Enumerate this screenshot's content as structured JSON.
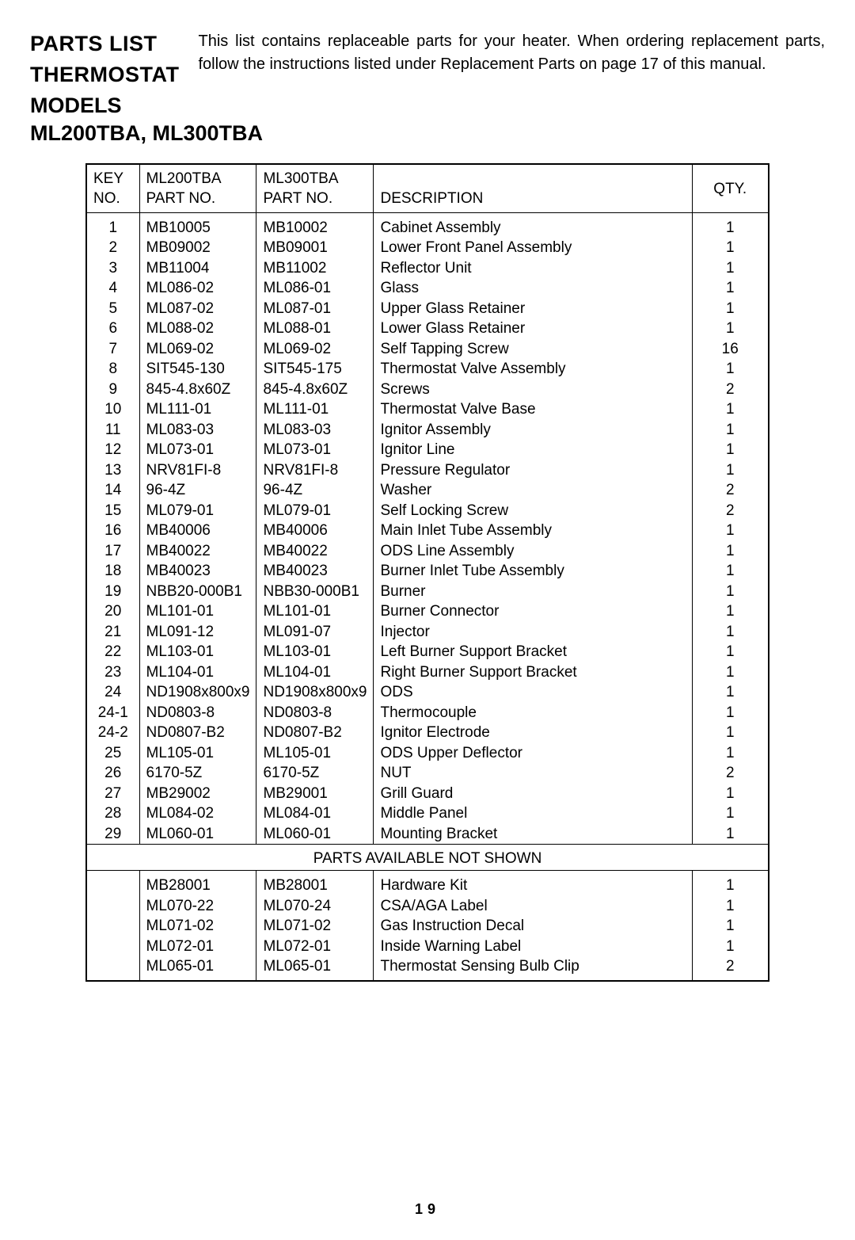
{
  "header": {
    "title_line1": "PARTS  LIST",
    "title_line2": "THERMOSTAT",
    "title_line3": "MODELS",
    "models": "ML200TBA, ML300TBA",
    "intro": "This list contains replaceable parts for your heater. When ordering replacement parts, follow  the instructions listed under Replacement Parts on page 17 of this manual."
  },
  "table": {
    "columns": {
      "key_l1": "KEY",
      "key_l2": "NO.",
      "p1_l1": "ML200TBA",
      "p1_l2": "PART NO.",
      "p2_l1": "ML300TBA",
      "p2_l2": "PART NO.",
      "desc": "DESCRIPTION",
      "qty": "QTY."
    },
    "rows": [
      {
        "key": "1",
        "p1": "MB10005",
        "p2": "MB10002",
        "desc": "Cabinet  Assembly",
        "qty": "1"
      },
      {
        "key": "2",
        "p1": "MB09002",
        "p2": "MB09001",
        "desc": "Lower Front  Panel  Assembly",
        "qty": "1"
      },
      {
        "key": "3",
        "p1": "MB11004",
        "p2": "MB11002",
        "desc": "Reflector  Unit",
        "qty": "1"
      },
      {
        "key": "4",
        "p1": "ML086-02",
        "p2": "ML086-01",
        "desc": "Glass",
        "qty": "1"
      },
      {
        "key": "5",
        "p1": "ML087-02",
        "p2": "ML087-01",
        "desc": "Upper  Glass  Retainer",
        "qty": "1"
      },
      {
        "key": "6",
        "p1": "ML088-02",
        "p2": "ML088-01",
        "desc": "Lower  Glass  Retainer",
        "qty": "1"
      },
      {
        "key": "7",
        "p1": "ML069-02",
        "p2": "ML069-02",
        "desc": "Self  Tapping  Screw",
        "qty": "16"
      },
      {
        "key": "8",
        "p1": "SIT545-130",
        "p2": "SIT545-175",
        "desc": "Thermostat   Valve  Assembly",
        "qty": "1"
      },
      {
        "key": "9",
        "p1": "845-4.8x60Z",
        "p2": "845-4.8x60Z",
        "desc": "Screws",
        "qty": "2"
      },
      {
        "key": "10",
        "p1": "ML111-01",
        "p2": "ML111-01",
        "desc": "Thermostat  Valve  Base",
        "qty": "1"
      },
      {
        "key": "11",
        "p1": "ML083-03",
        "p2": "ML083-03",
        "desc": "Ignitor   Assembly",
        "qty": "1"
      },
      {
        "key": "12",
        "p1": "ML073-01",
        "p2": "ML073-01",
        "desc": "Ignitor  Line",
        "qty": "1"
      },
      {
        "key": "13",
        "p1": "NRV81FI-8",
        "p2": "NRV81FI-8",
        "desc": "Pressure   Regulator",
        "qty": "1"
      },
      {
        "key": "14",
        "p1": "96-4Z",
        "p2": "96-4Z",
        "desc": "Washer",
        "qty": "2"
      },
      {
        "key": "15",
        "p1": "ML079-01",
        "p2": "ML079-01",
        "desc": "Self  Locking  Screw",
        "qty": "2"
      },
      {
        "key": "16",
        "p1": "MB40006",
        "p2": "MB40006",
        "desc": "Main  Inlet  Tube  Assembly",
        "qty": "1"
      },
      {
        "key": "17",
        "p1": "MB40022",
        "p2": "MB40022",
        "desc": "ODS  Line  Assembly",
        "qty": "1"
      },
      {
        "key": "18",
        "p1": "MB40023",
        "p2": "MB40023",
        "desc": "Burner  Inlet  Tube  Assembly",
        "qty": "1"
      },
      {
        "key": "19",
        "p1": "NBB20-000B1",
        "p2": "NBB30-000B1",
        "desc": "Burner",
        "qty": "1"
      },
      {
        "key": "20",
        "p1": "ML101-01",
        "p2": "ML101-01",
        "desc": "Burner  Connector",
        "qty": "1"
      },
      {
        "key": "21",
        "p1": "ML091-12",
        "p2": "ML091-07",
        "desc": "Injector",
        "qty": "1"
      },
      {
        "key": "22",
        "p1": "ML103-01",
        "p2": "ML103-01",
        "desc": "Left  Burner  Support  Bracket",
        "qty": "1"
      },
      {
        "key": "23",
        "p1": "ML104-01",
        "p2": "ML104-01",
        "desc": "Right  Burner  Support  Bracket",
        "qty": "1"
      },
      {
        "key": "24",
        "p1": "ND1908x800x9",
        "p2": "ND1908x800x9",
        "desc": "ODS",
        "qty": "1"
      },
      {
        "key": "24-1",
        "p1": "ND0803-8",
        "p2": "ND0803-8",
        "desc": "Thermocouple",
        "qty": "1"
      },
      {
        "key": "24-2",
        "p1": "ND0807-B2",
        "p2": "ND0807-B2",
        "desc": "Ignitor   Electrode",
        "qty": "1"
      },
      {
        "key": "25",
        "p1": "ML105-01",
        "p2": "ML105-01",
        "desc": "ODS  Upper  Deflector",
        "qty": "1"
      },
      {
        "key": "26",
        "p1": "6170-5Z",
        "p2": "6170-5Z",
        "desc": "NUT",
        "qty": "2"
      },
      {
        "key": "27",
        "p1": "MB29002",
        "p2": "MB29001",
        "desc": "Grill  Guard",
        "qty": "1"
      },
      {
        "key": "28",
        "p1": "ML084-02",
        "p2": "ML084-01",
        "desc": "Middle  Panel",
        "qty": "1"
      },
      {
        "key": "29",
        "p1": "ML060-01",
        "p2": "ML060-01",
        "desc": "Mounting  Bracket",
        "qty": "1"
      }
    ],
    "section_label": "PARTS  AVAILABLE  NOT  SHOWN",
    "rows2": [
      {
        "key": "",
        "p1": "MB28001",
        "p2": "MB28001",
        "desc": "Hardware  Kit",
        "qty": "1"
      },
      {
        "key": "",
        "p1": "ML070-22",
        "p2": "ML070-24",
        "desc": "CSA/AGA   Label",
        "qty": "1"
      },
      {
        "key": "",
        "p1": "ML071-02",
        "p2": "ML071-02",
        "desc": "Gas  Instruction  Decal",
        "qty": "1"
      },
      {
        "key": "",
        "p1": "ML072-01",
        "p2": "ML072-01",
        "desc": "Inside   Warning  Label",
        "qty": "1"
      },
      {
        "key": "",
        "p1": "ML065-01",
        "p2": "ML065-01",
        "desc": "Thermostat   Sensing  Bulb  Clip",
        "qty": "2"
      }
    ]
  },
  "page_number": "19"
}
